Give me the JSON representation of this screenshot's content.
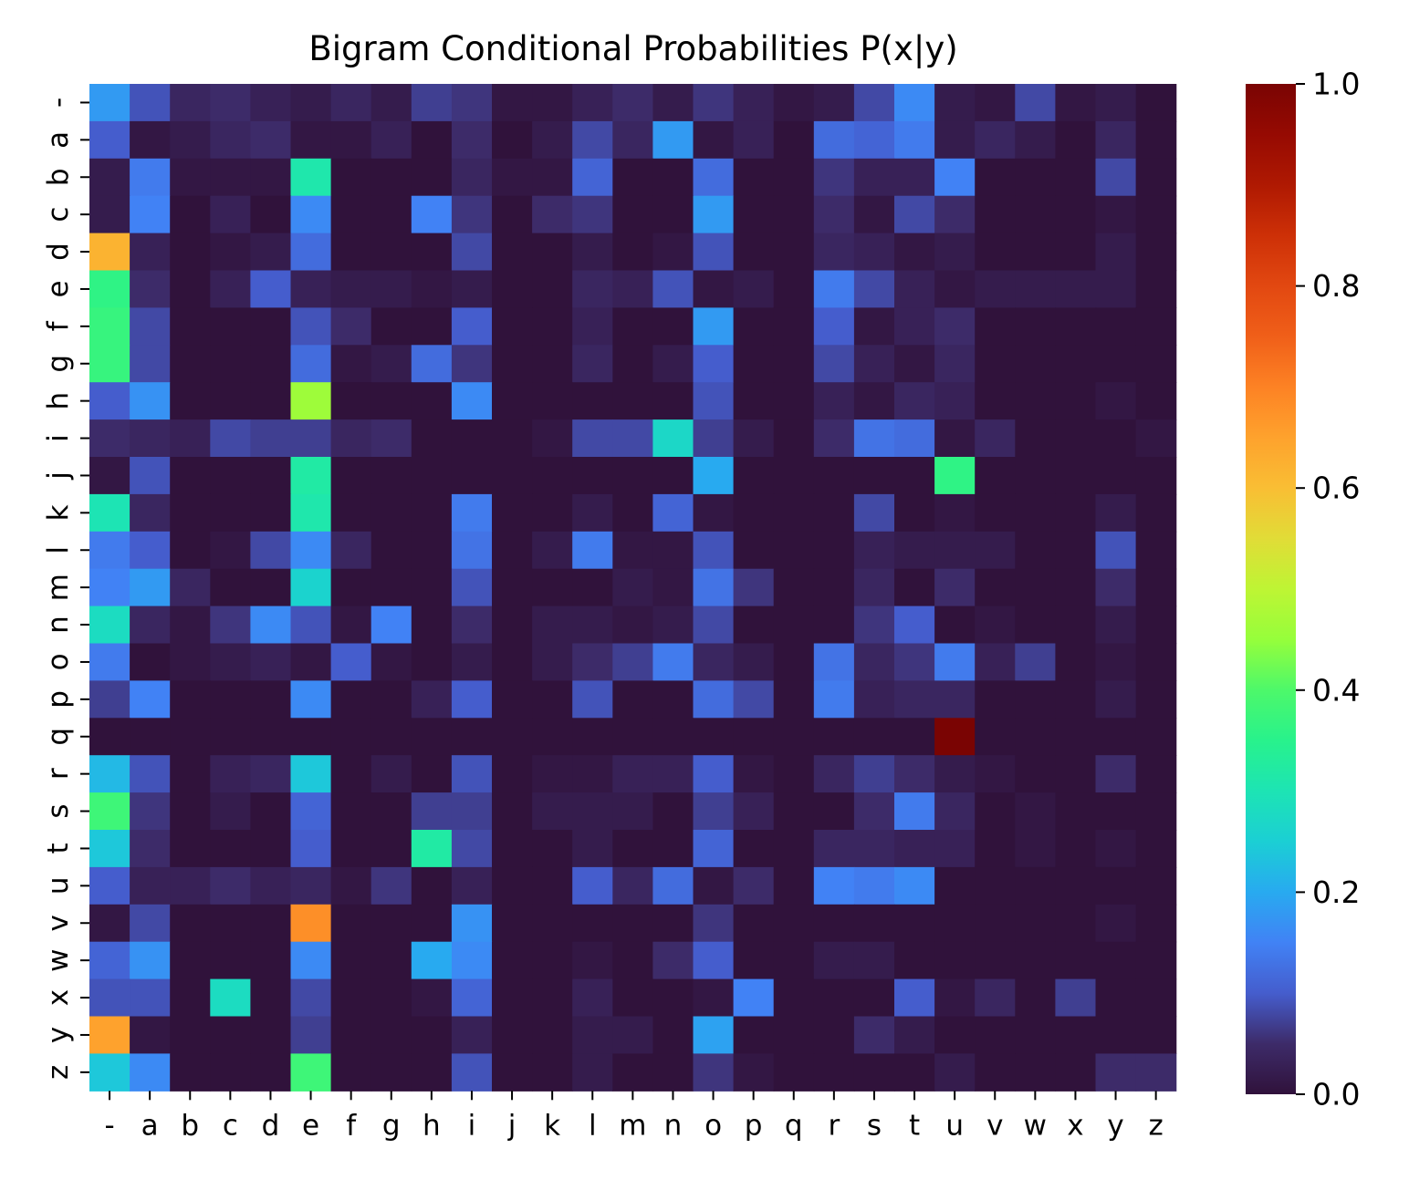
{
  "chart_data": {
    "type": "heatmap",
    "title": "Bigram Conditional Probabilities P(x|y)",
    "xlabel": "",
    "ylabel": "",
    "x_categories": [
      "-",
      "a",
      "b",
      "c",
      "d",
      "e",
      "f",
      "g",
      "h",
      "i",
      "j",
      "k",
      "l",
      "m",
      "n",
      "o",
      "p",
      "q",
      "r",
      "s",
      "t",
      "u",
      "v",
      "w",
      "x",
      "y",
      "z"
    ],
    "y_categories": [
      "-",
      "a",
      "b",
      "c",
      "d",
      "e",
      "f",
      "g",
      "h",
      "i",
      "j",
      "k",
      "l",
      "m",
      "n",
      "o",
      "p",
      "q",
      "r",
      "s",
      "t",
      "u",
      "v",
      "w",
      "x",
      "y",
      "z"
    ],
    "values": [
      [
        0.18,
        0.09,
        0.04,
        0.05,
        0.03,
        0.02,
        0.04,
        0.02,
        0.07,
        0.06,
        0.01,
        0.01,
        0.03,
        0.05,
        0.02,
        0.06,
        0.03,
        0.01,
        0.02,
        0.08,
        0.16,
        0.02,
        0.01,
        0.08,
        0.01,
        0.02,
        0.0
      ],
      [
        0.1,
        0.01,
        0.02,
        0.04,
        0.05,
        0.01,
        0.01,
        0.03,
        0.0,
        0.05,
        0.0,
        0.02,
        0.08,
        0.04,
        0.18,
        0.01,
        0.03,
        0.0,
        0.12,
        0.11,
        0.14,
        0.02,
        0.04,
        0.02,
        0.0,
        0.04,
        0.0
      ],
      [
        0.02,
        0.14,
        0.01,
        0.01,
        0.01,
        0.31,
        0.0,
        0.0,
        0.0,
        0.04,
        0.01,
        0.01,
        0.11,
        0.0,
        0.0,
        0.12,
        0.0,
        0.0,
        0.06,
        0.03,
        0.03,
        0.15,
        0.0,
        0.0,
        0.0,
        0.08,
        0.0
      ],
      [
        0.02,
        0.15,
        0.0,
        0.03,
        0.0,
        0.16,
        0.0,
        0.0,
        0.15,
        0.06,
        0.0,
        0.05,
        0.06,
        0.0,
        0.0,
        0.18,
        0.0,
        0.0,
        0.05,
        0.01,
        0.08,
        0.05,
        0.0,
        0.0,
        0.0,
        0.01,
        0.0
      ],
      [
        0.62,
        0.03,
        0.0,
        0.01,
        0.02,
        0.12,
        0.0,
        0.0,
        0.0,
        0.08,
        0.0,
        0.0,
        0.02,
        0.0,
        0.01,
        0.09,
        0.0,
        0.0,
        0.04,
        0.03,
        0.01,
        0.02,
        0.0,
        0.0,
        0.0,
        0.02,
        0.0
      ],
      [
        0.36,
        0.05,
        0.0,
        0.03,
        0.1,
        0.03,
        0.02,
        0.02,
        0.01,
        0.02,
        0.0,
        0.0,
        0.04,
        0.03,
        0.09,
        0.01,
        0.02,
        0.0,
        0.14,
        0.08,
        0.03,
        0.01,
        0.02,
        0.02,
        0.02,
        0.02,
        0.0
      ],
      [
        0.37,
        0.08,
        0.0,
        0.0,
        0.0,
        0.09,
        0.05,
        0.0,
        0.0,
        0.1,
        0.0,
        0.0,
        0.03,
        0.0,
        0.0,
        0.18,
        0.0,
        0.0,
        0.1,
        0.01,
        0.03,
        0.05,
        0.0,
        0.0,
        0.0,
        0.0,
        0.0
      ],
      [
        0.37,
        0.08,
        0.0,
        0.0,
        0.0,
        0.12,
        0.01,
        0.02,
        0.12,
        0.06,
        0.0,
        0.0,
        0.04,
        0.0,
        0.02,
        0.1,
        0.0,
        0.0,
        0.08,
        0.03,
        0.01,
        0.04,
        0.0,
        0.0,
        0.0,
        0.0,
        0.0
      ],
      [
        0.1,
        0.17,
        0.0,
        0.0,
        0.0,
        0.46,
        0.0,
        0.0,
        0.0,
        0.16,
        0.0,
        0.0,
        0.0,
        0.0,
        0.0,
        0.09,
        0.0,
        0.0,
        0.03,
        0.01,
        0.04,
        0.03,
        0.0,
        0.0,
        0.0,
        0.01,
        0.0
      ],
      [
        0.05,
        0.04,
        0.03,
        0.08,
        0.07,
        0.07,
        0.04,
        0.05,
        0.0,
        0.0,
        0.0,
        0.01,
        0.08,
        0.08,
        0.27,
        0.07,
        0.02,
        0.0,
        0.05,
        0.13,
        0.12,
        0.01,
        0.04,
        0.0,
        0.0,
        0.0,
        0.01
      ],
      [
        0.01,
        0.09,
        0.0,
        0.0,
        0.0,
        0.32,
        0.0,
        0.0,
        0.0,
        0.0,
        0.0,
        0.0,
        0.0,
        0.0,
        0.0,
        0.2,
        0.0,
        0.0,
        0.0,
        0.0,
        0.0,
        0.36,
        0.0,
        0.0,
        0.0,
        0.0,
        0.0
      ],
      [
        0.3,
        0.04,
        0.0,
        0.0,
        0.0,
        0.31,
        0.0,
        0.0,
        0.0,
        0.14,
        0.0,
        0.0,
        0.02,
        0.0,
        0.11,
        0.01,
        0.0,
        0.0,
        0.0,
        0.08,
        0.0,
        0.01,
        0.0,
        0.0,
        0.0,
        0.02,
        0.0
      ],
      [
        0.14,
        0.1,
        0.0,
        0.01,
        0.08,
        0.16,
        0.04,
        0.0,
        0.0,
        0.13,
        0.0,
        0.02,
        0.14,
        0.01,
        0.01,
        0.09,
        0.0,
        0.0,
        0.0,
        0.03,
        0.02,
        0.02,
        0.02,
        0.0,
        0.0,
        0.09,
        0.0
      ],
      [
        0.15,
        0.18,
        0.04,
        0.0,
        0.0,
        0.26,
        0.0,
        0.0,
        0.0,
        0.09,
        0.0,
        0.0,
        0.0,
        0.02,
        0.01,
        0.13,
        0.06,
        0.0,
        0.0,
        0.04,
        0.0,
        0.05,
        0.0,
        0.0,
        0.0,
        0.05,
        0.0
      ],
      [
        0.28,
        0.04,
        0.01,
        0.06,
        0.16,
        0.09,
        0.01,
        0.15,
        0.0,
        0.05,
        0.0,
        0.02,
        0.02,
        0.01,
        0.02,
        0.08,
        0.0,
        0.0,
        0.0,
        0.06,
        0.1,
        0.0,
        0.01,
        0.0,
        0.0,
        0.02,
        0.0
      ],
      [
        0.14,
        0.0,
        0.01,
        0.02,
        0.03,
        0.01,
        0.1,
        0.01,
        0.0,
        0.02,
        0.0,
        0.02,
        0.05,
        0.07,
        0.14,
        0.04,
        0.02,
        0.0,
        0.13,
        0.04,
        0.06,
        0.14,
        0.03,
        0.07,
        0.0,
        0.01,
        0.0
      ],
      [
        0.07,
        0.15,
        0.0,
        0.0,
        0.0,
        0.16,
        0.0,
        0.0,
        0.03,
        0.1,
        0.0,
        0.0,
        0.09,
        0.0,
        0.0,
        0.12,
        0.08,
        0.0,
        0.14,
        0.03,
        0.04,
        0.04,
        0.0,
        0.0,
        0.0,
        0.02,
        0.0
      ],
      [
        0.0,
        0.0,
        0.0,
        0.0,
        0.0,
        0.0,
        0.0,
        0.0,
        0.0,
        0.0,
        0.0,
        0.0,
        0.0,
        0.0,
        0.0,
        0.0,
        0.0,
        0.0,
        0.0,
        0.0,
        0.0,
        1.0,
        0.0,
        0.0,
        0.0,
        0.0,
        0.0
      ],
      [
        0.22,
        0.09,
        0.0,
        0.03,
        0.04,
        0.24,
        0.0,
        0.02,
        0.0,
        0.09,
        0.0,
        0.01,
        0.01,
        0.03,
        0.03,
        0.1,
        0.01,
        0.0,
        0.04,
        0.07,
        0.05,
        0.02,
        0.01,
        0.0,
        0.0,
        0.05,
        0.0
      ],
      [
        0.38,
        0.06,
        0.0,
        0.02,
        0.0,
        0.11,
        0.0,
        0.0,
        0.07,
        0.07,
        0.0,
        0.02,
        0.02,
        0.02,
        0.0,
        0.07,
        0.03,
        0.0,
        0.0,
        0.05,
        0.14,
        0.04,
        0.0,
        0.01,
        0.0,
        0.0,
        0.0
      ],
      [
        0.24,
        0.05,
        0.0,
        0.0,
        0.0,
        0.1,
        0.0,
        0.0,
        0.32,
        0.08,
        0.0,
        0.0,
        0.02,
        0.0,
        0.0,
        0.11,
        0.0,
        0.0,
        0.04,
        0.04,
        0.03,
        0.03,
        0.0,
        0.01,
        0.0,
        0.01,
        0.0
      ],
      [
        0.1,
        0.03,
        0.03,
        0.05,
        0.03,
        0.04,
        0.01,
        0.06,
        0.0,
        0.03,
        0.0,
        0.0,
        0.1,
        0.04,
        0.12,
        0.01,
        0.05,
        0.0,
        0.15,
        0.14,
        0.16,
        0.0,
        0.0,
        0.0,
        0.0,
        0.0,
        0.0
      ],
      [
        0.01,
        0.08,
        0.0,
        0.0,
        0.0,
        0.68,
        0.0,
        0.0,
        0.0,
        0.17,
        0.0,
        0.0,
        0.0,
        0.0,
        0.0,
        0.06,
        0.0,
        0.0,
        0.0,
        0.0,
        0.0,
        0.0,
        0.0,
        0.0,
        0.0,
        0.01,
        0.0
      ],
      [
        0.11,
        0.17,
        0.0,
        0.0,
        0.0,
        0.16,
        0.0,
        0.0,
        0.2,
        0.16,
        0.0,
        0.0,
        0.01,
        0.0,
        0.05,
        0.1,
        0.0,
        0.0,
        0.02,
        0.02,
        0.0,
        0.0,
        0.0,
        0.0,
        0.0,
        0.0,
        0.0
      ],
      [
        0.09,
        0.09,
        0.0,
        0.28,
        0.0,
        0.08,
        0.0,
        0.0,
        0.01,
        0.11,
        0.0,
        0.0,
        0.03,
        0.0,
        0.0,
        0.01,
        0.15,
        0.0,
        0.0,
        0.0,
        0.1,
        0.01,
        0.04,
        0.0,
        0.07,
        0.0,
        0.0
      ],
      [
        0.65,
        0.01,
        0.0,
        0.0,
        0.0,
        0.07,
        0.0,
        0.0,
        0.0,
        0.03,
        0.0,
        0.0,
        0.02,
        0.02,
        0.0,
        0.19,
        0.0,
        0.0,
        0.0,
        0.05,
        0.02,
        0.0,
        0.0,
        0.0,
        0.0,
        0.0,
        0.0
      ],
      [
        0.24,
        0.16,
        0.0,
        0.0,
        0.0,
        0.38,
        0.0,
        0.0,
        0.0,
        0.09,
        0.0,
        0.0,
        0.02,
        0.0,
        0.0,
        0.06,
        0.01,
        0.0,
        0.0,
        0.0,
        0.0,
        0.02,
        0.0,
        0.0,
        0.0,
        0.05,
        0.05
      ]
    ],
    "colorbar": {
      "colormap": "turbo",
      "range": [
        0.0,
        1.0
      ],
      "ticks": [
        "0.0",
        "0.2",
        "0.4",
        "0.6",
        "0.8",
        "1.0"
      ],
      "tick_values": [
        0.0,
        0.2,
        0.4,
        0.6,
        0.8,
        1.0
      ]
    },
    "grid": false,
    "legend": "colorbar-right"
  }
}
